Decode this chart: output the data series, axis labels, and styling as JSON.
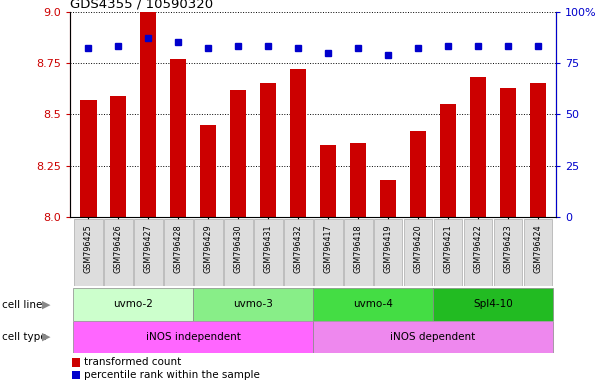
{
  "title": "GDS4355 / 10590320",
  "samples": [
    "GSM796425",
    "GSM796426",
    "GSM796427",
    "GSM796428",
    "GSM796429",
    "GSM796430",
    "GSM796431",
    "GSM796432",
    "GSM796417",
    "GSM796418",
    "GSM796419",
    "GSM796420",
    "GSM796421",
    "GSM796422",
    "GSM796423",
    "GSM796424"
  ],
  "transformed_count": [
    8.57,
    8.59,
    9.0,
    8.77,
    8.45,
    8.62,
    8.65,
    8.72,
    8.35,
    8.36,
    8.18,
    8.42,
    8.55,
    8.68,
    8.63,
    8.65
  ],
  "percentile_rank": [
    82,
    83,
    87,
    85,
    82,
    83,
    83,
    82,
    80,
    82,
    79,
    82,
    83,
    83,
    83,
    83
  ],
  "ylim_left": [
    8.0,
    9.0
  ],
  "ylim_right": [
    0,
    100
  ],
  "yticks_left": [
    8.0,
    8.25,
    8.5,
    8.75,
    9.0
  ],
  "yticks_right": [
    0,
    25,
    50,
    75,
    100
  ],
  "cell_lines": [
    {
      "label": "uvmo-2",
      "start": 0,
      "end": 4,
      "color": "#ccffcc"
    },
    {
      "label": "uvmo-3",
      "start": 4,
      "end": 8,
      "color": "#88ee88"
    },
    {
      "label": "uvmo-4",
      "start": 8,
      "end": 12,
      "color": "#44dd44"
    },
    {
      "label": "Spl4-10",
      "start": 12,
      "end": 16,
      "color": "#22bb22"
    }
  ],
  "cell_types": [
    {
      "label": "iNOS independent",
      "start": 0,
      "end": 8,
      "color": "#ff66ff"
    },
    {
      "label": "iNOS dependent",
      "start": 8,
      "end": 16,
      "color": "#ee88ee"
    }
  ],
  "bar_color": "#cc0000",
  "dot_color": "#0000cc",
  "bar_width": 0.55,
  "bg_color": "white",
  "left_label_color": "#cc0000",
  "right_label_color": "#0000cc"
}
